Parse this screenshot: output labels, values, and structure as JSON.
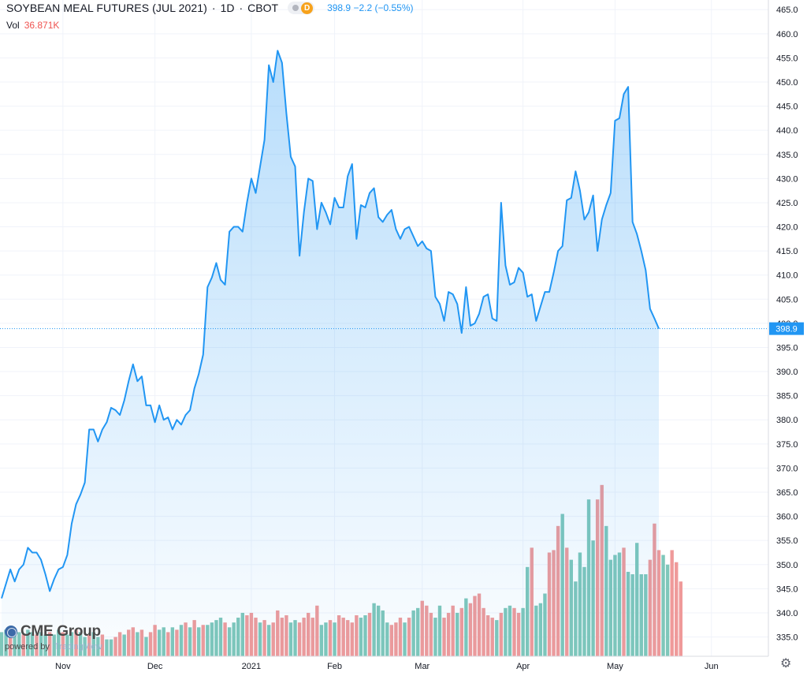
{
  "header": {
    "symbol": "SOYBEAN MEAL FUTURES (JUL 2021)",
    "interval": "1D",
    "exchange": "CBOT",
    "badge_letter": "D",
    "last": "398.9",
    "change": "−2.2 (−0.55%)",
    "volume_label": "Vol",
    "volume_value": "36.871K"
  },
  "logo": {
    "name": "CME Group",
    "powered": "powered by",
    "tradingview": "TradingView"
  },
  "price_badge": "398.9",
  "colors": {
    "line": "#2196f3",
    "vol_up": "#7fc7ba",
    "vol_down": "#ef9a9a",
    "last_badge": "#2196f3"
  },
  "icons": {
    "settings": "gear-icon"
  },
  "chart_data": {
    "type": "area",
    "ylim": [
      331,
      467
    ],
    "y_ticks": [
      "465.0",
      "460.0",
      "455.0",
      "450.0",
      "445.0",
      "440.0",
      "435.0",
      "430.0",
      "425.0",
      "420.0",
      "415.0",
      "410.0",
      "405.0",
      "400.0",
      "395.0",
      "390.0",
      "385.0",
      "380.0",
      "375.0",
      "370.0",
      "365.0",
      "360.0",
      "355.0",
      "350.0",
      "345.0",
      "340.0",
      "335.0"
    ],
    "x_labels": [
      {
        "label": "Nov",
        "index": 14
      },
      {
        "label": "Dec",
        "index": 35
      },
      {
        "label": "2021",
        "index": 57
      },
      {
        "label": "Feb",
        "index": 76
      },
      {
        "label": "Mar",
        "index": 96
      },
      {
        "label": "Apr",
        "index": 119
      },
      {
        "label": "May",
        "index": 140
      },
      {
        "label": "Jun",
        "index": 162
      }
    ],
    "n_slots": 174,
    "close": [
      343.0,
      346.0,
      349.0,
      346.5,
      349.0,
      350.0,
      353.5,
      352.5,
      352.5,
      351.0,
      348.0,
      344.5,
      347.0,
      349.0,
      349.5,
      352.0,
      358.5,
      362.5,
      364.5,
      367.0,
      378.0,
      378.0,
      375.5,
      378.0,
      379.5,
      382.5,
      382.0,
      381.0,
      384.0,
      388.0,
      391.5,
      388.0,
      389.0,
      383.0,
      383.0,
      379.5,
      383.0,
      380.0,
      380.5,
      378.0,
      380.0,
      379.0,
      381.0,
      382.0,
      386.5,
      389.5,
      393.5,
      407.5,
      409.5,
      412.5,
      409.0,
      408.0,
      419.0,
      420.0,
      420.0,
      419.0,
      425.0,
      430.0,
      427.0,
      432.5,
      438.0,
      453.5,
      450.0,
      456.5,
      454.0,
      443.5,
      434.5,
      432.5,
      414.0,
      423.0,
      430.0,
      429.5,
      419.5,
      425.0,
      423.0,
      420.5,
      426.0,
      424.0,
      424.0,
      430.5,
      433.0,
      417.5,
      424.5,
      424.0,
      427.0,
      428.0,
      422.0,
      421.0,
      422.5,
      423.5,
      419.5,
      417.5,
      419.5,
      420.0,
      418.0,
      416.0,
      417.0,
      415.5,
      415.0,
      405.5,
      404.0,
      400.5,
      406.5,
      406.0,
      404.0,
      398.0,
      407.5,
      399.5,
      400.0,
      402.0,
      405.5,
      406.0,
      401.0,
      400.5,
      425.0,
      412.0,
      408.0,
      408.5,
      411.5,
      410.5,
      405.5,
      406.0,
      400.5,
      403.5,
      406.5,
      406.5,
      410.5,
      415.0,
      416.0,
      425.5,
      426.0,
      431.5,
      427.5,
      421.5,
      423.0,
      426.5,
      415.0,
      421.5,
      424.5,
      427.0,
      442.0,
      442.5,
      447.5,
      449.0,
      421.0,
      418.5,
      415.0,
      411.0,
      403.0,
      401.0,
      398.9
    ],
    "volume_axis_max": 366.0,
    "volume": [
      {
        "top": 336.0,
        "dir": "up"
      },
      {
        "top": 336.5,
        "dir": "up"
      },
      {
        "top": 336.0,
        "dir": "down"
      },
      {
        "top": 335.5,
        "dir": "up"
      },
      {
        "top": 336.0,
        "dir": "up"
      },
      {
        "top": 335.5,
        "dir": "down"
      },
      {
        "top": 336.5,
        "dir": "up"
      },
      {
        "top": 336.0,
        "dir": "up"
      },
      {
        "top": 335.5,
        "dir": "down"
      },
      {
        "top": 336.0,
        "dir": "up"
      },
      {
        "top": 335.5,
        "dir": "up"
      },
      {
        "top": 336.0,
        "dir": "down"
      },
      {
        "top": 335.5,
        "dir": "up"
      },
      {
        "top": 336.5,
        "dir": "up"
      },
      {
        "top": 336.0,
        "dir": "down"
      },
      {
        "top": 335.5,
        "dir": "up"
      },
      {
        "top": 336.0,
        "dir": "up"
      },
      {
        "top": 336.5,
        "dir": "down"
      },
      {
        "top": 336.0,
        "dir": "up"
      },
      {
        "top": 335.0,
        "dir": "up"
      },
      {
        "top": 335.5,
        "dir": "down"
      },
      {
        "top": 336.0,
        "dir": "up"
      },
      {
        "top": 335.0,
        "dir": "up"
      },
      {
        "top": 335.5,
        "dir": "down"
      },
      {
        "top": 334.5,
        "dir": "up"
      },
      {
        "top": 334.5,
        "dir": "up"
      },
      {
        "top": 335.0,
        "dir": "down"
      },
      {
        "top": 336.0,
        "dir": "down"
      },
      {
        "top": 335.5,
        "dir": "up"
      },
      {
        "top": 336.5,
        "dir": "down"
      },
      {
        "top": 337.0,
        "dir": "down"
      },
      {
        "top": 336.0,
        "dir": "up"
      },
      {
        "top": 336.5,
        "dir": "down"
      },
      {
        "top": 335.0,
        "dir": "up"
      },
      {
        "top": 336.0,
        "dir": "down"
      },
      {
        "top": 337.5,
        "dir": "down"
      },
      {
        "top": 336.5,
        "dir": "up"
      },
      {
        "top": 337.0,
        "dir": "up"
      },
      {
        "top": 336.0,
        "dir": "down"
      },
      {
        "top": 337.0,
        "dir": "up"
      },
      {
        "top": 336.5,
        "dir": "down"
      },
      {
        "top": 337.5,
        "dir": "up"
      },
      {
        "top": 338.0,
        "dir": "down"
      },
      {
        "top": 337.0,
        "dir": "up"
      },
      {
        "top": 338.5,
        "dir": "down"
      },
      {
        "top": 337.0,
        "dir": "up"
      },
      {
        "top": 337.5,
        "dir": "down"
      },
      {
        "top": 337.5,
        "dir": "up"
      },
      {
        "top": 338.0,
        "dir": "up"
      },
      {
        "top": 338.5,
        "dir": "up"
      },
      {
        "top": 339.0,
        "dir": "up"
      },
      {
        "top": 338.0,
        "dir": "down"
      },
      {
        "top": 337.0,
        "dir": "up"
      },
      {
        "top": 338.0,
        "dir": "up"
      },
      {
        "top": 339.0,
        "dir": "up"
      },
      {
        "top": 340.0,
        "dir": "up"
      },
      {
        "top": 339.5,
        "dir": "down"
      },
      {
        "top": 340.0,
        "dir": "down"
      },
      {
        "top": 339.0,
        "dir": "down"
      },
      {
        "top": 338.0,
        "dir": "up"
      },
      {
        "top": 338.5,
        "dir": "down"
      },
      {
        "top": 337.5,
        "dir": "up"
      },
      {
        "top": 338.0,
        "dir": "down"
      },
      {
        "top": 340.5,
        "dir": "down"
      },
      {
        "top": 339.0,
        "dir": "down"
      },
      {
        "top": 339.5,
        "dir": "down"
      },
      {
        "top": 338.0,
        "dir": "up"
      },
      {
        "top": 338.5,
        "dir": "up"
      },
      {
        "top": 338.0,
        "dir": "down"
      },
      {
        "top": 339.0,
        "dir": "down"
      },
      {
        "top": 340.0,
        "dir": "down"
      },
      {
        "top": 339.0,
        "dir": "down"
      },
      {
        "top": 341.5,
        "dir": "down"
      },
      {
        "top": 337.5,
        "dir": "up"
      },
      {
        "top": 338.0,
        "dir": "up"
      },
      {
        "top": 338.5,
        "dir": "down"
      },
      {
        "top": 338.0,
        "dir": "up"
      },
      {
        "top": 339.5,
        "dir": "down"
      },
      {
        "top": 339.0,
        "dir": "down"
      },
      {
        "top": 338.5,
        "dir": "down"
      },
      {
        "top": 338.0,
        "dir": "down"
      },
      {
        "top": 339.5,
        "dir": "down"
      },
      {
        "top": 339.0,
        "dir": "up"
      },
      {
        "top": 339.5,
        "dir": "up"
      },
      {
        "top": 340.0,
        "dir": "down"
      },
      {
        "top": 342.0,
        "dir": "up"
      },
      {
        "top": 341.5,
        "dir": "up"
      },
      {
        "top": 340.5,
        "dir": "up"
      },
      {
        "top": 338.0,
        "dir": "up"
      },
      {
        "top": 337.5,
        "dir": "down"
      },
      {
        "top": 338.0,
        "dir": "down"
      },
      {
        "top": 339.0,
        "dir": "down"
      },
      {
        "top": 338.0,
        "dir": "up"
      },
      {
        "top": 339.0,
        "dir": "down"
      },
      {
        "top": 340.5,
        "dir": "up"
      },
      {
        "top": 341.0,
        "dir": "up"
      },
      {
        "top": 342.5,
        "dir": "down"
      },
      {
        "top": 341.5,
        "dir": "down"
      },
      {
        "top": 340.0,
        "dir": "down"
      },
      {
        "top": 339.0,
        "dir": "up"
      },
      {
        "top": 341.5,
        "dir": "up"
      },
      {
        "top": 339.0,
        "dir": "down"
      },
      {
        "top": 340.0,
        "dir": "down"
      },
      {
        "top": 341.5,
        "dir": "down"
      },
      {
        "top": 340.0,
        "dir": "up"
      },
      {
        "top": 341.0,
        "dir": "down"
      },
      {
        "top": 343.0,
        "dir": "up"
      },
      {
        "top": 342.0,
        "dir": "down"
      },
      {
        "top": 343.5,
        "dir": "down"
      },
      {
        "top": 344.0,
        "dir": "down"
      },
      {
        "top": 341.0,
        "dir": "down"
      },
      {
        "top": 339.5,
        "dir": "down"
      },
      {
        "top": 339.0,
        "dir": "down"
      },
      {
        "top": 338.5,
        "dir": "up"
      },
      {
        "top": 340.0,
        "dir": "down"
      },
      {
        "top": 341.0,
        "dir": "up"
      },
      {
        "top": 341.5,
        "dir": "up"
      },
      {
        "top": 341.0,
        "dir": "down"
      },
      {
        "top": 340.0,
        "dir": "down"
      },
      {
        "top": 341.0,
        "dir": "up"
      },
      {
        "top": 349.5,
        "dir": "up"
      },
      {
        "top": 353.5,
        "dir": "down"
      },
      {
        "top": 341.5,
        "dir": "up"
      },
      {
        "top": 342.0,
        "dir": "up"
      },
      {
        "top": 344.0,
        "dir": "up"
      },
      {
        "top": 352.5,
        "dir": "down"
      },
      {
        "top": 353.0,
        "dir": "down"
      },
      {
        "top": 358.0,
        "dir": "down"
      },
      {
        "top": 360.5,
        "dir": "up"
      },
      {
        "top": 353.5,
        "dir": "down"
      },
      {
        "top": 351.0,
        "dir": "up"
      },
      {
        "top": 346.5,
        "dir": "up"
      },
      {
        "top": 352.5,
        "dir": "up"
      },
      {
        "top": 349.5,
        "dir": "up"
      },
      {
        "top": 363.5,
        "dir": "up"
      },
      {
        "top": 355.0,
        "dir": "up"
      },
      {
        "top": 363.5,
        "dir": "down"
      },
      {
        "top": 366.5,
        "dir": "down"
      },
      {
        "top": 358.0,
        "dir": "up"
      },
      {
        "top": 351.0,
        "dir": "up"
      },
      {
        "top": 352.0,
        "dir": "up"
      },
      {
        "top": 352.5,
        "dir": "up"
      },
      {
        "top": 353.5,
        "dir": "down"
      },
      {
        "top": 348.5,
        "dir": "up"
      },
      {
        "top": 348.0,
        "dir": "up"
      },
      {
        "top": 354.5,
        "dir": "up"
      },
      {
        "top": 348.0,
        "dir": "up"
      },
      {
        "top": 348.0,
        "dir": "up"
      },
      {
        "top": 351.0,
        "dir": "down"
      },
      {
        "top": 358.5,
        "dir": "down"
      },
      {
        "top": 353.0,
        "dir": "down"
      },
      {
        "top": 352.0,
        "dir": "up"
      },
      {
        "top": 350.0,
        "dir": "up"
      },
      {
        "top": 353.0,
        "dir": "down"
      },
      {
        "top": 350.5,
        "dir": "down"
      },
      {
        "top": 346.5,
        "dir": "down"
      }
    ],
    "last_value": 398.9,
    "grid": true,
    "legend": "none"
  }
}
